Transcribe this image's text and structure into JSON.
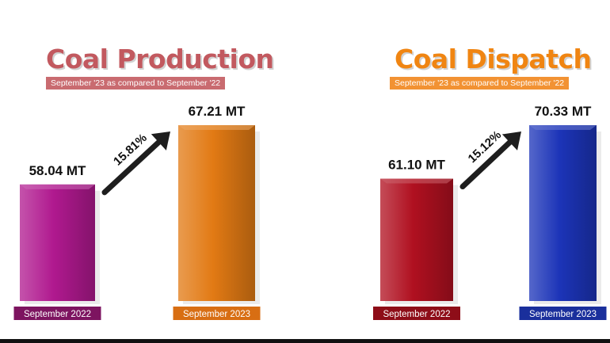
{
  "chart_data": [
    {
      "type": "bar",
      "title": "Coal Production",
      "subtitle": "September '23 as compared to September '22",
      "categories": [
        "September 2022",
        "September 2023"
      ],
      "values": [
        58.04,
        67.21
      ],
      "value_labels": [
        "58.04 MT",
        "67.21 MT"
      ],
      "unit": "MT",
      "growth_label": "15.81%",
      "ylim": [
        0,
        80
      ],
      "grid": false,
      "colors": {
        "title": "#c2595f",
        "subtitle_bg": "#c96b70",
        "bars": [
          "#b0198f",
          "#e27a14"
        ],
        "category_bg": [
          "#7d1460",
          "#d86e13"
        ]
      }
    },
    {
      "type": "bar",
      "title": "Coal Dispatch",
      "subtitle": "September '23 as compared to September '22",
      "categories": [
        "September 2022",
        "September 2023"
      ],
      "values": [
        61.1,
        70.33
      ],
      "value_labels": [
        "61.10 MT",
        "70.33 MT"
      ],
      "unit": "MT",
      "growth_label": "15.12%",
      "ylim": [
        0,
        80
      ],
      "grid": false,
      "colors": {
        "title": "#f08512",
        "subtitle_bg": "#f29233",
        "bars": [
          "#b01020",
          "#1c34b8"
        ],
        "category_bg": [
          "#8e0d18",
          "#1a2f9c"
        ]
      }
    }
  ]
}
